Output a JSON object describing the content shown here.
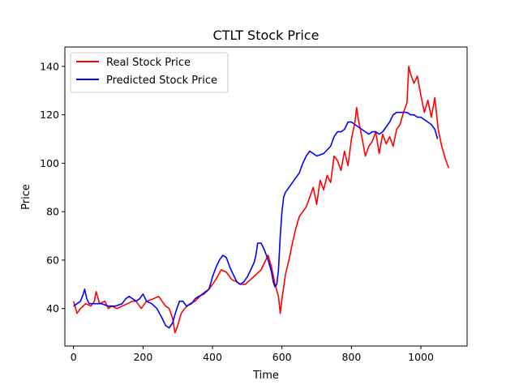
{
  "chart_data": {
    "type": "line",
    "title": "CTLT Stock Price",
    "xlabel": "Time",
    "ylabel": "Price",
    "xlim": [
      -25,
      1133
    ],
    "ylim": [
      24.5,
      148
    ],
    "xticks": [
      0,
      200,
      400,
      600,
      800,
      1000
    ],
    "yticks": [
      40,
      60,
      80,
      100,
      120,
      140
    ],
    "grid": false,
    "legend_position": "top-left",
    "series": [
      {
        "name": "Real Stock Price",
        "color": "#ff0000",
        "x": [
          0,
          10,
          20,
          35,
          50,
          60,
          65,
          75,
          90,
          100,
          110,
          125,
          140,
          155,
          170,
          180,
          195,
          210,
          230,
          245,
          255,
          265,
          275,
          285,
          292,
          300,
          310,
          320,
          335,
          350,
          370,
          390,
          410,
          425,
          440,
          455,
          470,
          480,
          495,
          510,
          525,
          540,
          550,
          560,
          570,
          580,
          590,
          595,
          600,
          610,
          620,
          630,
          640,
          650,
          660,
          670,
          680,
          690,
          700,
          710,
          720,
          730,
          740,
          750,
          760,
          770,
          780,
          790,
          800,
          810,
          815,
          820,
          830,
          840,
          850,
          860,
          870,
          880,
          890,
          900,
          910,
          920,
          930,
          940,
          950,
          960,
          965,
          970,
          980,
          990,
          1000,
          1010,
          1020,
          1030,
          1040,
          1050,
          1060,
          1070,
          1080
        ],
        "y": [
          43,
          38,
          40,
          42,
          41,
          43,
          47,
          42,
          43,
          40,
          41,
          40,
          41,
          42,
          43,
          43,
          40,
          43,
          44,
          45,
          43,
          41,
          40,
          36,
          30,
          33,
          38,
          40,
          42,
          43,
          46,
          48,
          52,
          56,
          55,
          52,
          51,
          50,
          50,
          52,
          54,
          56,
          59,
          62,
          57,
          50,
          45,
          38,
          44,
          54,
          60,
          67,
          73,
          78,
          80,
          82,
          86,
          90,
          83,
          93,
          89,
          95,
          92,
          103,
          101,
          97,
          105,
          99,
          110,
          117,
          123,
          118,
          111,
          103,
          107,
          109,
          113,
          104,
          112,
          108,
          111,
          107,
          114,
          116,
          121,
          125,
          140,
          137,
          133,
          136,
          128,
          121,
          126,
          119,
          127,
          114,
          107,
          102,
          98
        ]
      },
      {
        "name": "Predicted Stock Price",
        "color": "#0000ff",
        "x": [
          0,
          10,
          20,
          28,
          32,
          38,
          45,
          60,
          80,
          100,
          120,
          140,
          150,
          160,
          170,
          180,
          190,
          200,
          210,
          225,
          240,
          255,
          265,
          275,
          285,
          295,
          305,
          315,
          325,
          340,
          350,
          360,
          375,
          390,
          400,
          410,
          420,
          430,
          440,
          450,
          460,
          470,
          480,
          490,
          500,
          510,
          520,
          525,
          530,
          540,
          550,
          560,
          570,
          575,
          580,
          585,
          590,
          595,
          600,
          605,
          610,
          620,
          630,
          640,
          650,
          660,
          670,
          680,
          700,
          720,
          740,
          750,
          760,
          770,
          780,
          790,
          800,
          810,
          820,
          830,
          840,
          850,
          860,
          870,
          880,
          890,
          900,
          910,
          920,
          930,
          940,
          950,
          960,
          970,
          980,
          990,
          1000,
          1010,
          1020,
          1030,
          1040,
          1048
        ],
        "y": [
          41,
          42,
          43,
          46,
          48,
          44,
          42,
          42,
          42,
          41,
          41,
          42,
          44,
          45,
          44,
          43,
          44,
          46,
          43,
          42,
          40,
          36,
          33,
          32,
          34,
          39,
          43,
          43,
          41,
          42,
          44,
          45,
          46,
          48,
          53,
          57,
          60,
          62,
          61,
          57,
          54,
          51,
          50,
          51,
          53,
          56,
          59,
          62,
          67,
          67,
          64,
          60,
          55,
          51,
          49,
          50,
          56,
          70,
          80,
          86,
          88,
          90,
          92,
          94,
          96,
          100,
          103,
          105,
          103,
          104,
          107,
          111,
          113,
          113,
          114,
          117,
          117,
          116,
          115,
          114,
          113,
          112,
          113,
          113,
          112,
          113,
          115,
          117,
          120,
          121,
          121,
          121,
          121,
          120,
          120,
          119,
          119,
          118,
          117,
          116,
          114,
          110
        ]
      }
    ]
  }
}
